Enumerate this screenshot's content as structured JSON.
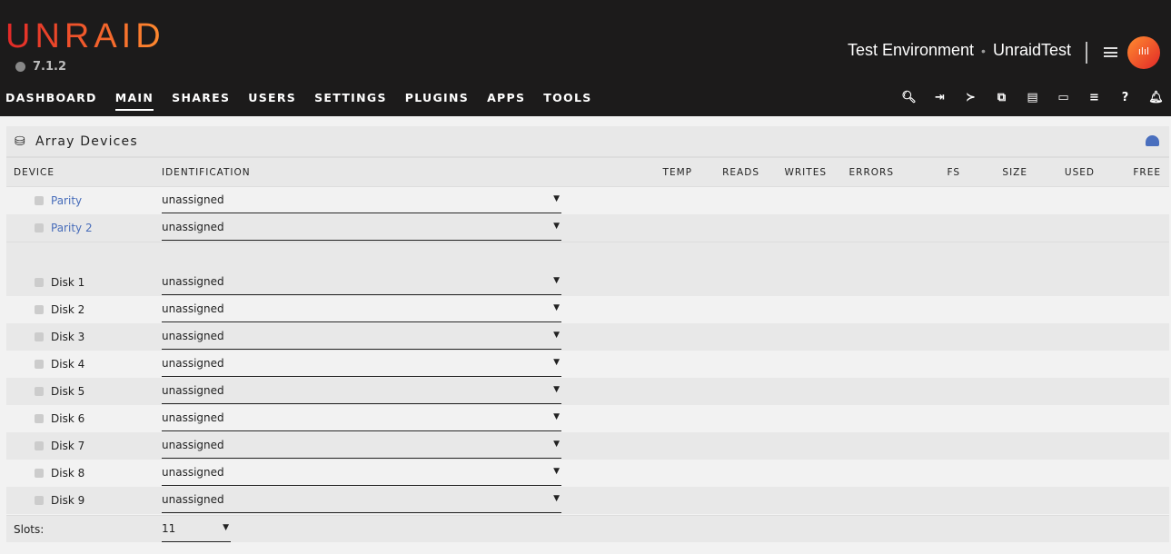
{
  "header": {
    "logo": "UNRAID",
    "version": "7.1.2",
    "server_desc": "Test Environment",
    "server_name": "UnraidTest",
    "nav": [
      "DASHBOARD",
      "MAIN",
      "SHARES",
      "USERS",
      "SETTINGS",
      "PLUGINS",
      "APPS",
      "TOOLS"
    ],
    "active_nav": "MAIN",
    "icons": [
      "search-icon",
      "logout-icon",
      "terminal-icon",
      "copy-icon",
      "feedback-icon",
      "display-icon",
      "log-icon",
      "help-icon",
      "bell-icon"
    ]
  },
  "panel": {
    "title": "Array Devices",
    "columns": [
      "DEVICE",
      "IDENTIFICATION",
      "TEMP",
      "READS",
      "WRITES",
      "ERRORS",
      "FS",
      "SIZE",
      "USED",
      "FREE"
    ],
    "parity": [
      {
        "name": "Parity",
        "value": "unassigned"
      },
      {
        "name": "Parity 2",
        "value": "unassigned"
      }
    ],
    "disks": [
      {
        "name": "Disk 1",
        "value": "unassigned"
      },
      {
        "name": "Disk 2",
        "value": "unassigned"
      },
      {
        "name": "Disk 3",
        "value": "unassigned"
      },
      {
        "name": "Disk 4",
        "value": "unassigned"
      },
      {
        "name": "Disk 5",
        "value": "unassigned"
      },
      {
        "name": "Disk 6",
        "value": "unassigned"
      },
      {
        "name": "Disk 7",
        "value": "unassigned"
      },
      {
        "name": "Disk 8",
        "value": "unassigned"
      },
      {
        "name": "Disk 9",
        "value": "unassigned"
      }
    ],
    "slots_label": "Slots:",
    "slots_value": "11"
  },
  "colors": {
    "accent_start": "#e22828",
    "accent_end": "#ff8c2f",
    "link": "#486dba",
    "header_bg": "#1c1b1b"
  }
}
